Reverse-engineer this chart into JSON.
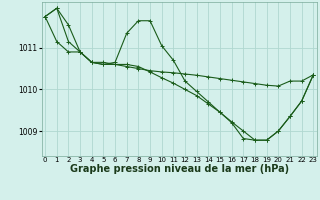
{
  "background_color": "#d4f0eb",
  "grid_color": "#b0d8d0",
  "line_color": "#1a5c1a",
  "xlabel": "Graphe pression niveau de la mer (hPa)",
  "xlabel_fontsize": 7.0,
  "ylim": [
    1008.4,
    1012.1
  ],
  "xlim": [
    -0.3,
    23.3
  ],
  "yticks": [
    1009,
    1010,
    1011
  ],
  "ytick_labels": [
    "1009",
    "1010",
    "1011"
  ],
  "xticks": [
    0,
    1,
    2,
    3,
    4,
    5,
    6,
    7,
    8,
    9,
    10,
    11,
    12,
    13,
    14,
    15,
    16,
    17,
    18,
    19,
    20,
    21,
    22,
    23
  ],
  "series1_x": [
    0,
    1,
    2,
    3,
    4,
    5,
    6,
    7,
    8,
    9,
    10,
    11,
    12,
    13,
    14,
    15,
    16,
    17,
    18,
    19,
    20,
    21,
    22,
    23
  ],
  "series1_y": [
    1011.75,
    1011.95,
    1011.55,
    1010.9,
    1010.65,
    1010.65,
    1010.6,
    1010.55,
    1010.5,
    1010.45,
    1010.42,
    1010.4,
    1010.37,
    1010.34,
    1010.3,
    1010.26,
    1010.22,
    1010.18,
    1010.14,
    1010.1,
    1010.08,
    1010.2,
    1010.2,
    1010.35
  ],
  "series2_x": [
    0,
    1,
    2,
    3,
    4,
    5,
    6,
    7,
    8,
    9,
    10,
    11,
    12,
    13,
    14,
    15,
    16,
    17,
    18,
    19,
    20,
    21,
    22,
    23
  ],
  "series2_y": [
    1011.75,
    1011.95,
    1011.15,
    1010.9,
    1010.65,
    1010.6,
    1010.65,
    1011.35,
    1011.65,
    1011.65,
    1011.05,
    1010.7,
    1010.2,
    1009.95,
    1009.7,
    1009.45,
    1009.2,
    1008.82,
    1008.78,
    1008.78,
    1009.0,
    1009.35,
    1009.72,
    1010.35
  ],
  "series3_x": [
    0,
    1,
    2,
    3,
    4,
    5,
    6,
    7,
    8,
    9,
    10,
    11,
    12,
    13,
    14,
    15,
    16,
    17,
    18,
    19,
    20,
    21,
    22,
    23
  ],
  "series3_y": [
    1011.75,
    1011.15,
    1010.9,
    1010.9,
    1010.65,
    1010.6,
    1010.6,
    1010.6,
    1010.55,
    1010.42,
    1010.28,
    1010.15,
    1010.0,
    1009.85,
    1009.65,
    1009.45,
    1009.22,
    1009.0,
    1008.78,
    1008.78,
    1009.0,
    1009.35,
    1009.72,
    1010.35
  ]
}
